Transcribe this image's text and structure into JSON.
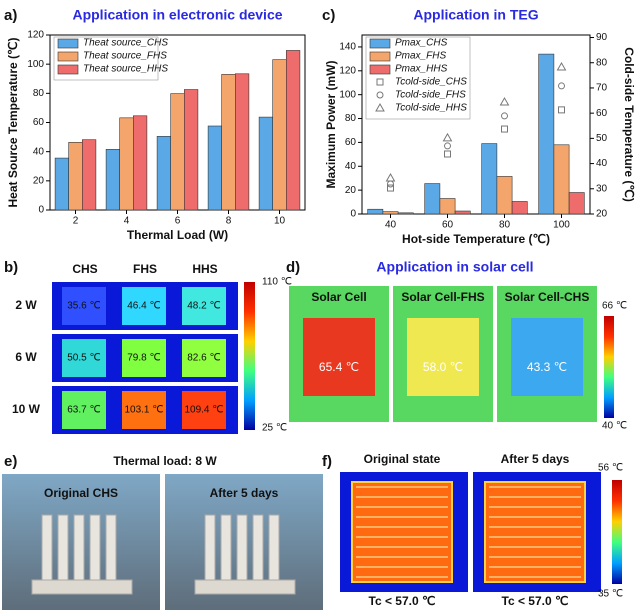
{
  "chart_data": [
    {
      "type": "bar",
      "panel_label": "a)",
      "title": "Application in electronic device",
      "xlabel": "Thermal Load (W)",
      "ylabel": "Heat Source Temperature (℃)",
      "categories": [
        "2",
        "4",
        "6",
        "8",
        "10"
      ],
      "series": [
        {
          "name": "Theat source_CHS",
          "color": "#5aa9e6",
          "values": [
            35.6,
            41.6,
            50.5,
            57.6,
            63.7
          ]
        },
        {
          "name": "Theat source_FHS",
          "color": "#f4a56c",
          "values": [
            46.4,
            63.2,
            79.8,
            93.0,
            103.1
          ]
        },
        {
          "name": "Theat source_HHS",
          "color": "#ee6c6c",
          "values": [
            48.2,
            64.6,
            82.6,
            93.4,
            109.4
          ]
        }
      ],
      "ylim": [
        0,
        120
      ],
      "yticks": [
        0,
        20,
        40,
        60,
        80,
        100,
        120
      ]
    },
    {
      "type": "bar",
      "panel_label": "c)",
      "title": "Application in TEG",
      "xlabel": "Hot-side Temperature (℃)",
      "ylabel": "Maximum Power (mW)",
      "y2label": "Cold-side Temperature (℃)",
      "categories": [
        "40",
        "60",
        "80",
        "100"
      ],
      "series": [
        {
          "name": "Pmax_CHS",
          "color": "#5aa9e6",
          "values": [
            4,
            25.5,
            59,
            134
          ]
        },
        {
          "name": "Pmax_FHS",
          "color": "#f4a56c",
          "values": [
            2,
            13,
            31.5,
            58
          ]
        },
        {
          "name": "Pmax_HHS",
          "color": "#ee6c6c",
          "values": [
            1,
            2.5,
            10.5,
            18
          ]
        },
        {
          "name": "Tcold-side_CHS",
          "type": "scatter",
          "marker": "square",
          "color": "#777777",
          "axis": "y2",
          "values": [
            30.3,
            43.8,
            53.7,
            61.3
          ]
        },
        {
          "name": "Tcold-side_FHS",
          "type": "scatter",
          "marker": "circle",
          "color": "#777777",
          "axis": "y2",
          "values": [
            31.9,
            47,
            58.9,
            70.8
          ]
        },
        {
          "name": "Tcold-side_HHS",
          "type": "scatter",
          "marker": "triangle",
          "color": "#777777",
          "axis": "y2",
          "values": [
            34.3,
            50.2,
            64.4,
            78.3
          ]
        }
      ],
      "ylim": [
        0,
        150
      ],
      "yticks": [
        0,
        20,
        40,
        60,
        80,
        100,
        120,
        140
      ],
      "y2lim": [
        20,
        91
      ],
      "y2ticks": [
        20,
        30,
        40,
        50,
        60,
        70,
        80,
        90
      ]
    }
  ],
  "panel_b": {
    "label": "b)",
    "columns": [
      "CHS",
      "FHS",
      "HHS"
    ],
    "rows": [
      "2 W",
      "6 W",
      "10 W"
    ],
    "temps": [
      [
        "35.6 ℃",
        "46.4 ℃",
        "48.2 ℃"
      ],
      [
        "50.5 ℃",
        "79.8 ℃",
        "82.6 ℃"
      ],
      [
        "63.7 ℃",
        "103.1 ℃",
        "109.4 ℃"
      ]
    ],
    "colorbar": [
      "110 ℃",
      "25 ℃"
    ]
  },
  "panel_d": {
    "label": "d)",
    "title": "Application in solar cell",
    "images": [
      "Solar Cell",
      "Solar Cell-FHS",
      "Solar Cell-CHS"
    ],
    "temps": [
      "65.4 ℃",
      "58.0 ℃",
      "43.3 ℃"
    ],
    "colorbar": [
      "66 ℃",
      "40 ℃"
    ]
  },
  "panel_e": {
    "label": "e)",
    "title": "Thermal load: 8 W",
    "images": [
      "Original CHS",
      "After 5 days"
    ]
  },
  "panel_f": {
    "label": "f)",
    "images": [
      "Original state",
      "After 5 days"
    ],
    "notes": [
      "Tc < 57.0 ℃",
      "Tc < 57.0 ℃"
    ],
    "colorbar": [
      "56 ℃",
      "35 ℃"
    ]
  }
}
